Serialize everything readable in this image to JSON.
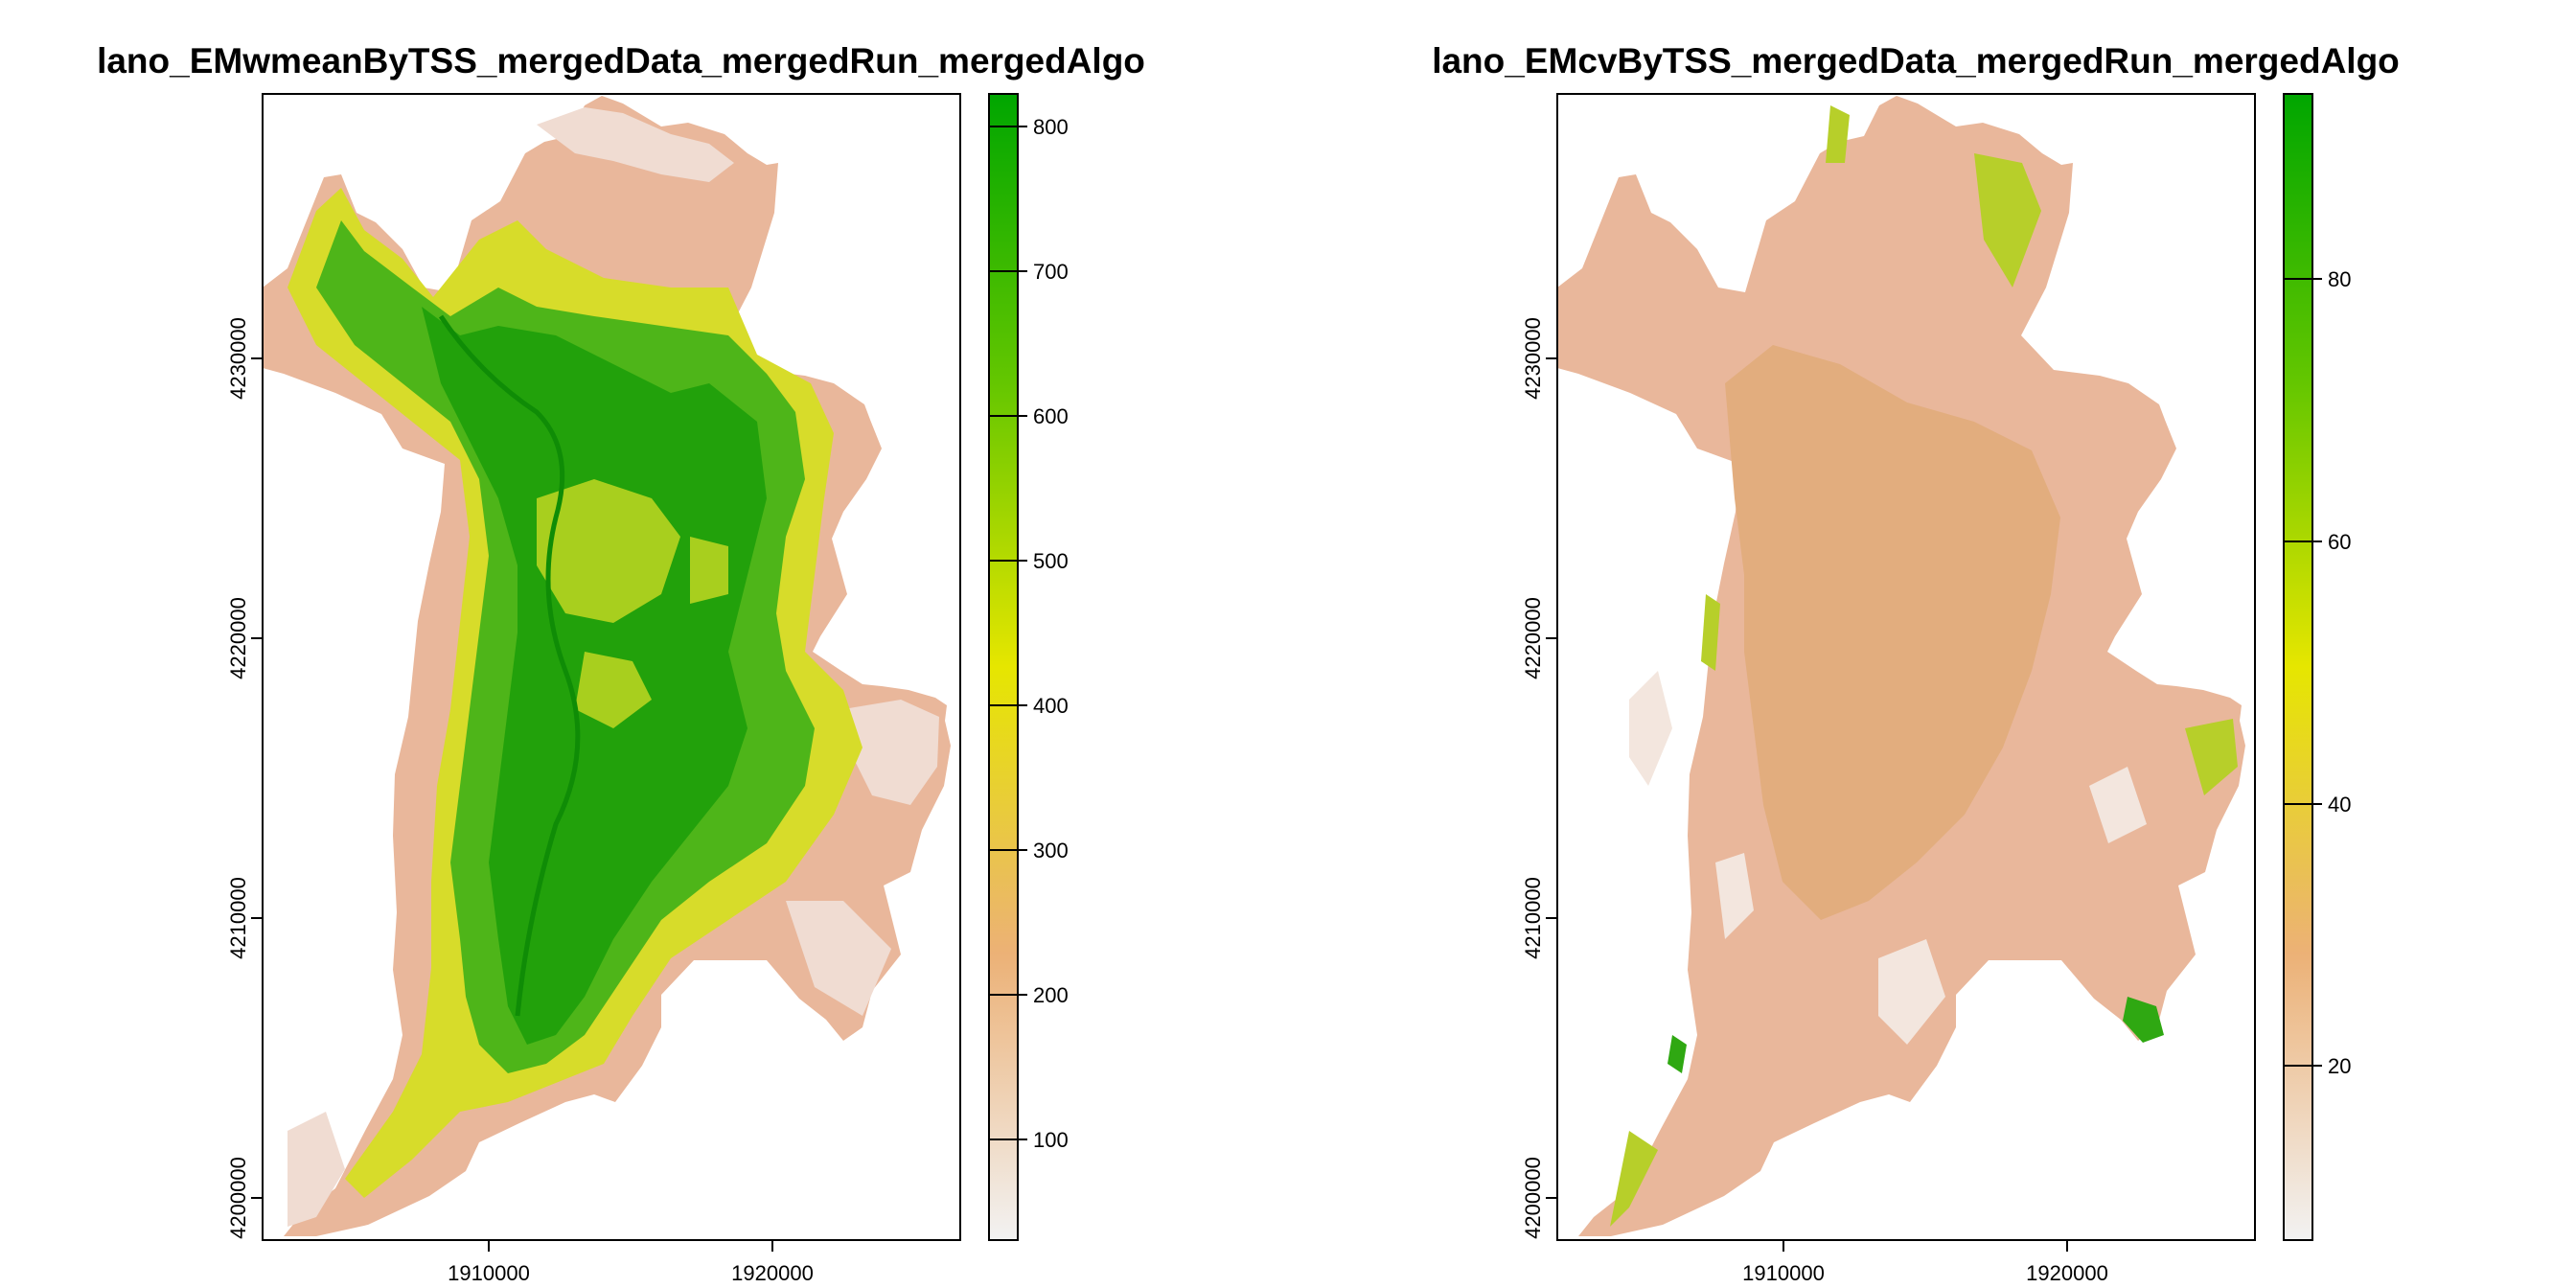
{
  "panels": [
    {
      "title": "lano_EMwmeanByTSS_mergedData_mergedRun_mergedAlgo",
      "x_ticks": [
        "1910000",
        "1920000"
      ],
      "y_ticks": [
        "4200000",
        "4210000",
        "4220000",
        "4230000"
      ],
      "legend_ticks": [
        "100",
        "200",
        "300",
        "400",
        "500",
        "600",
        "700",
        "800"
      ]
    },
    {
      "title": "lano_EMcvByTSS_mergedData_mergedRun_mergedAlgo",
      "x_ticks": [
        "1910000",
        "1920000"
      ],
      "y_ticks": [
        "4200000",
        "4210000",
        "4220000",
        "4230000"
      ],
      "legend_ticks": [
        "20",
        "40",
        "60",
        "80"
      ]
    }
  ],
  "chart_data": [
    {
      "type": "heatmap",
      "title": "lano_EMwmeanByTSS_mergedData_mergedRun_mergedAlgo",
      "x_ticks": [
        1910000,
        1920000
      ],
      "y_ticks": [
        4200000,
        4210000,
        4220000,
        4230000
      ],
      "legend": {
        "ticks": [
          100,
          200,
          300,
          400,
          500,
          600,
          700,
          800
        ],
        "range": [
          30,
          822
        ],
        "colors": [
          "#f2f2f2",
          "#ecb176",
          "#e6e600",
          "#63c600",
          "#00a600"
        ]
      }
    },
    {
      "type": "heatmap",
      "title": "lano_EMcvByTSS_mergedData_mergedRun_mergedAlgo",
      "x_ticks": [
        1910000,
        1920000
      ],
      "y_ticks": [
        4200000,
        4210000,
        4220000,
        4230000
      ],
      "legend": {
        "ticks": [
          20,
          40,
          60,
          80
        ],
        "range": [
          6,
          94
        ],
        "colors": [
          "#f2f2f2",
          "#ecb176",
          "#e6e600",
          "#63c600",
          "#00a600"
        ]
      }
    }
  ]
}
